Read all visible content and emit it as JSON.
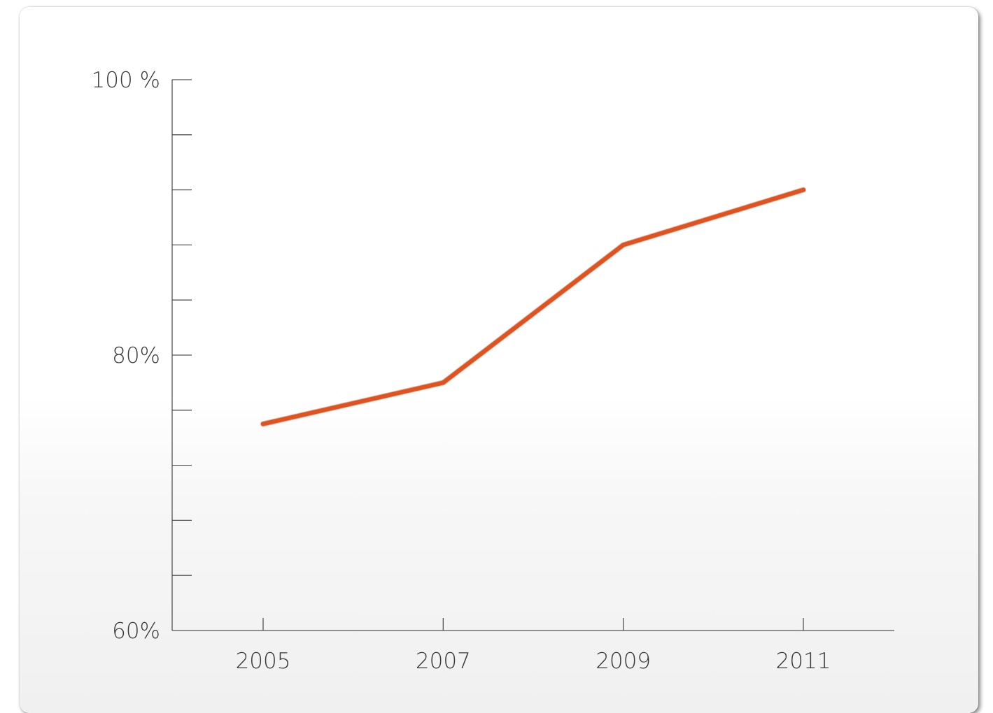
{
  "chart_data": {
    "type": "line",
    "title": "",
    "xlabel": "",
    "ylabel": "",
    "x": [
      "2005",
      "2007",
      "2009",
      "2011"
    ],
    "series": [
      {
        "values": [
          75,
          78,
          88,
          92
        ],
        "color": "#e0531f"
      }
    ],
    "ylim": [
      60,
      100
    ],
    "y_ticks": [
      60,
      64,
      68,
      72,
      76,
      80,
      84,
      88,
      92,
      96,
      100
    ],
    "y_tick_labels": [
      {
        "value": 100,
        "label": "100 %"
      },
      {
        "value": 80,
        "label": "80%"
      },
      {
        "value": 60,
        "label": "60%"
      }
    ],
    "grid": false,
    "legend": "none"
  }
}
